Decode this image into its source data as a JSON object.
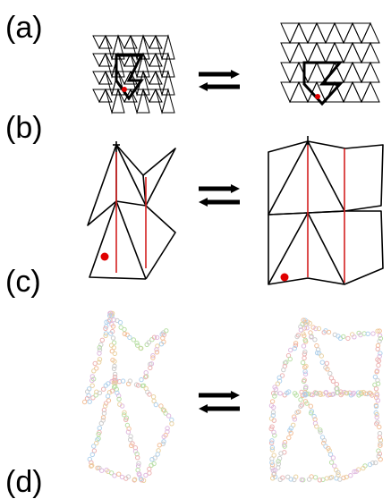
{
  "panels": {
    "a": {
      "label": "(a)"
    },
    "b": {
      "label": "(b)"
    },
    "c": {
      "label": "(c)"
    },
    "d": {
      "label": "(d)"
    }
  },
  "colors": {
    "lattice": "#000000",
    "highlight": "#000000",
    "crease": "#d42020",
    "marker": "#e00000",
    "chain_palette": [
      "#e8a0a0",
      "#a8d890",
      "#e6c78a",
      "#9cc6e8",
      "#d8a8d8",
      "#c0c0c0",
      "#f0b080"
    ]
  },
  "icons": {
    "transition": "double-arrow-icon"
  }
}
